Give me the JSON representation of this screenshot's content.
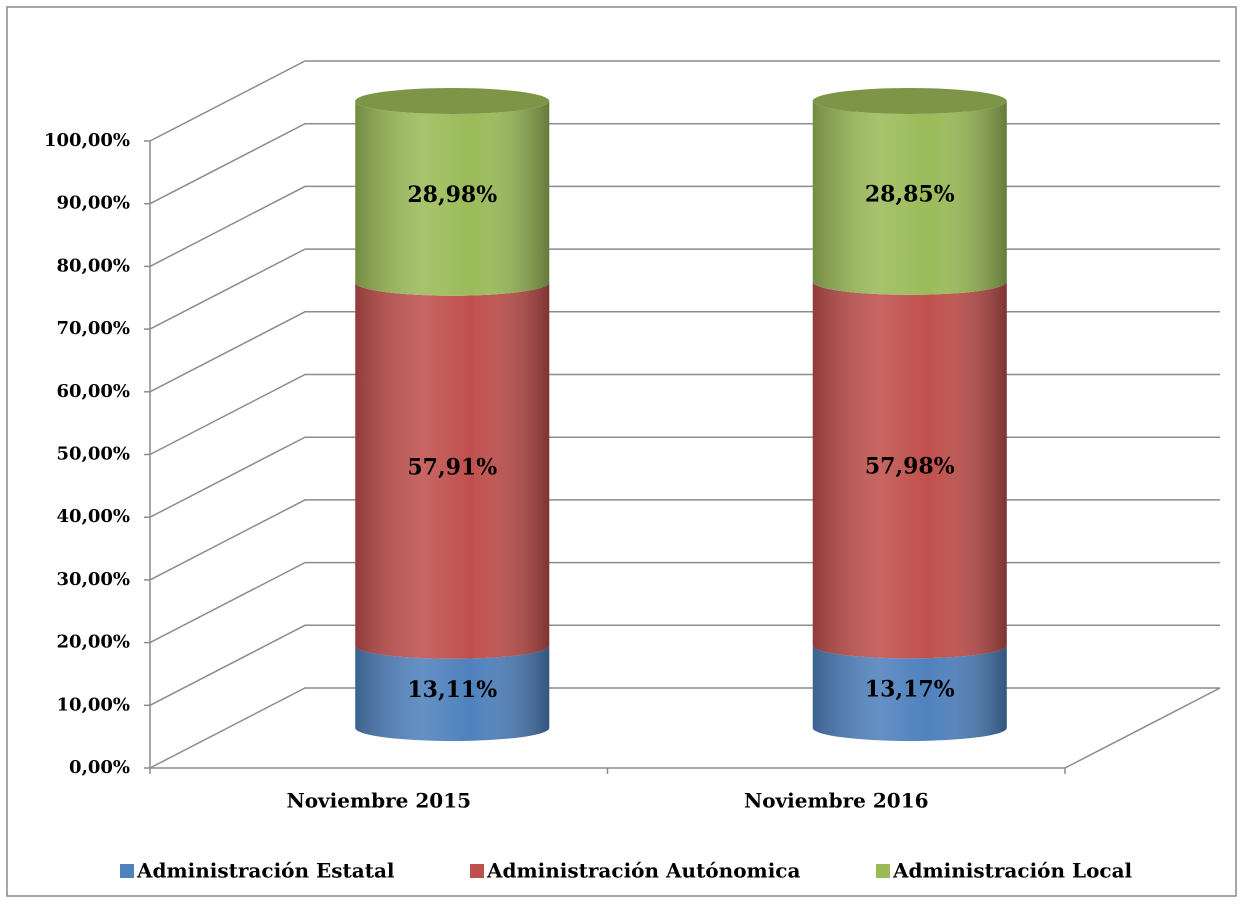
{
  "chart_data": {
    "type": "bar3d-cylinder-stacked",
    "categories": [
      "Noviembre 2015",
      "Noviembre 2016"
    ],
    "series": [
      {
        "name": "Administración Estatal",
        "color": "#4f81bd",
        "values": [
          13.11,
          13.17
        ],
        "value_labels": [
          "13,11%",
          "13,17%"
        ]
      },
      {
        "name": "Administración Autónomica",
        "color": "#c0504d",
        "values": [
          57.91,
          57.98
        ],
        "value_labels": [
          "57,91%",
          "57,98%"
        ]
      },
      {
        "name": "Administración Local",
        "color": "#9bbb59",
        "values": [
          28.98,
          28.85
        ],
        "value_labels": [
          "28,98%",
          "28,85%"
        ]
      }
    ],
    "ylim": [
      0,
      100
    ],
    "yticks": [
      {
        "value": 0,
        "label": "0,00%"
      },
      {
        "value": 10,
        "label": "10,00%"
      },
      {
        "value": 20,
        "label": "20,00%"
      },
      {
        "value": 30,
        "label": "30,00%"
      },
      {
        "value": 40,
        "label": "40,00%"
      },
      {
        "value": 50,
        "label": "50,00%"
      },
      {
        "value": 60,
        "label": "60,00%"
      },
      {
        "value": 70,
        "label": "70,00%"
      },
      {
        "value": 80,
        "label": "80,00%"
      },
      {
        "value": 90,
        "label": "90,00%"
      },
      {
        "value": 100,
        "label": "100,00%"
      }
    ],
    "grid": true,
    "legend": "bottom"
  }
}
